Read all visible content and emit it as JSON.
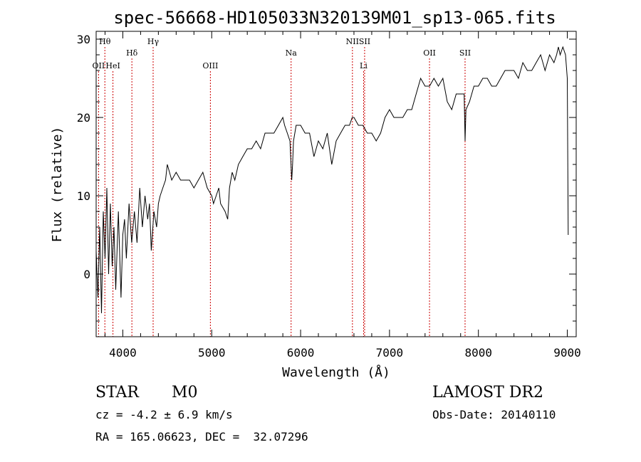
{
  "chart_data": {
    "type": "line",
    "title": "spec-56668-HD105033N320139M01_sp13-065.fits",
    "xlabel": "Wavelength (Å)",
    "ylabel": "Flux (relative)",
    "xlim": [
      3700,
      9100
    ],
    "ylim": [
      -8,
      31
    ],
    "xticks": [
      4000,
      5000,
      6000,
      7000,
      8000,
      9000
    ],
    "yticks": [
      0,
      10,
      20,
      30
    ],
    "grid": false,
    "line_color": "#000000",
    "marker_color": "#cc0000",
    "spectral_lines": [
      {
        "label": "Hθ",
        "wavelength": 3798,
        "row": "top"
      },
      {
        "label": "OII",
        "wavelength": 3727,
        "row": "low"
      },
      {
        "label": "HeI",
        "wavelength": 3889,
        "row": "low"
      },
      {
        "label": "Hδ",
        "wavelength": 4102,
        "row": "mid"
      },
      {
        "label": "Hγ",
        "wavelength": 4341,
        "row": "top"
      },
      {
        "label": "OIII",
        "wavelength": 4985,
        "row": "low"
      },
      {
        "label": "Na",
        "wavelength": 5893,
        "row": "mid"
      },
      {
        "label": "NII",
        "wavelength": 6583,
        "row": "top"
      },
      {
        "label": "SII",
        "wavelength": 6720,
        "row": "top"
      },
      {
        "label": "Li",
        "wavelength": 6708,
        "row": "low"
      },
      {
        "label": "OII",
        "wavelength": 7450,
        "row": "mid"
      },
      {
        "label": "SII",
        "wavelength": 7850,
        "row": "mid"
      }
    ],
    "series": [
      {
        "x": [
          3700,
          3720,
          3740,
          3760,
          3780,
          3800,
          3820,
          3840,
          3860,
          3880,
          3900,
          3920,
          3950,
          3980,
          4000,
          4020,
          4040,
          4070,
          4100,
          4130,
          4160,
          4190,
          4220,
          4250,
          4280,
          4300,
          4320,
          4350,
          4380,
          4400,
          4420,
          4450,
          4480,
          4500,
          4550,
          4600,
          4650,
          4700,
          4750,
          4800,
          4850,
          4900,
          4950,
          5000,
          5020,
          5050,
          5080,
          5100,
          5150,
          5180,
          5200,
          5230,
          5260,
          5300,
          5350,
          5400,
          5450,
          5500,
          5550,
          5600,
          5650,
          5700,
          5750,
          5800,
          5820,
          5850,
          5880,
          5900,
          5910,
          5920,
          5950,
          6000,
          6050,
          6100,
          6150,
          6200,
          6250,
          6300,
          6350,
          6400,
          6450,
          6500,
          6550,
          6580,
          6600,
          6650,
          6700,
          6750,
          6800,
          6850,
          6900,
          6950,
          7000,
          7050,
          7100,
          7150,
          7200,
          7250,
          7300,
          7350,
          7400,
          7450,
          7500,
          7550,
          7600,
          7650,
          7700,
          7750,
          7800,
          7840,
          7850,
          7860,
          7900,
          7950,
          8000,
          8050,
          8100,
          8150,
          8200,
          8250,
          8300,
          8350,
          8400,
          8450,
          8500,
          8550,
          8600,
          8650,
          8700,
          8750,
          8800,
          8850,
          8880,
          8900,
          8920,
          8950,
          8980,
          9000,
          9010
        ],
        "y": [
          3,
          -3,
          6,
          -5,
          8,
          2,
          11,
          0,
          9,
          1,
          6,
          -2,
          8,
          -3,
          5,
          7,
          2,
          9,
          4,
          8,
          4,
          11,
          6,
          10,
          7,
          9,
          3,
          8,
          6,
          9,
          10,
          11,
          12,
          14,
          12,
          13,
          12,
          12,
          12,
          11,
          12,
          13,
          11,
          10,
          9,
          10,
          11,
          9,
          8,
          7,
          11,
          13,
          12,
          14,
          15,
          16,
          16,
          17,
          16,
          18,
          18,
          18,
          19,
          20,
          19,
          18,
          17,
          12,
          14,
          17,
          19,
          19,
          18,
          18,
          15,
          17,
          16,
          18,
          14,
          17,
          18,
          19,
          19,
          20,
          20,
          19,
          19,
          18,
          18,
          17,
          18,
          20,
          21,
          20,
          20,
          20,
          21,
          21,
          23,
          25,
          24,
          24,
          25,
          24,
          25,
          22,
          21,
          23,
          23,
          23,
          17,
          21,
          22,
          24,
          24,
          25,
          25,
          24,
          24,
          25,
          26,
          26,
          26,
          25,
          27,
          26,
          26,
          27,
          28,
          26,
          28,
          27,
          28,
          29,
          28,
          29,
          28,
          25,
          5
        ]
      }
    ]
  },
  "info": {
    "object_class": "STAR",
    "subclass": "M0",
    "survey": "LAMOST DR2",
    "redshift": "cz = -4.2 ± 6.9 km/s",
    "obs_date": "Obs-Date: 20140110",
    "coords": "RA = 165.06623, DEC =  32.07296"
  }
}
